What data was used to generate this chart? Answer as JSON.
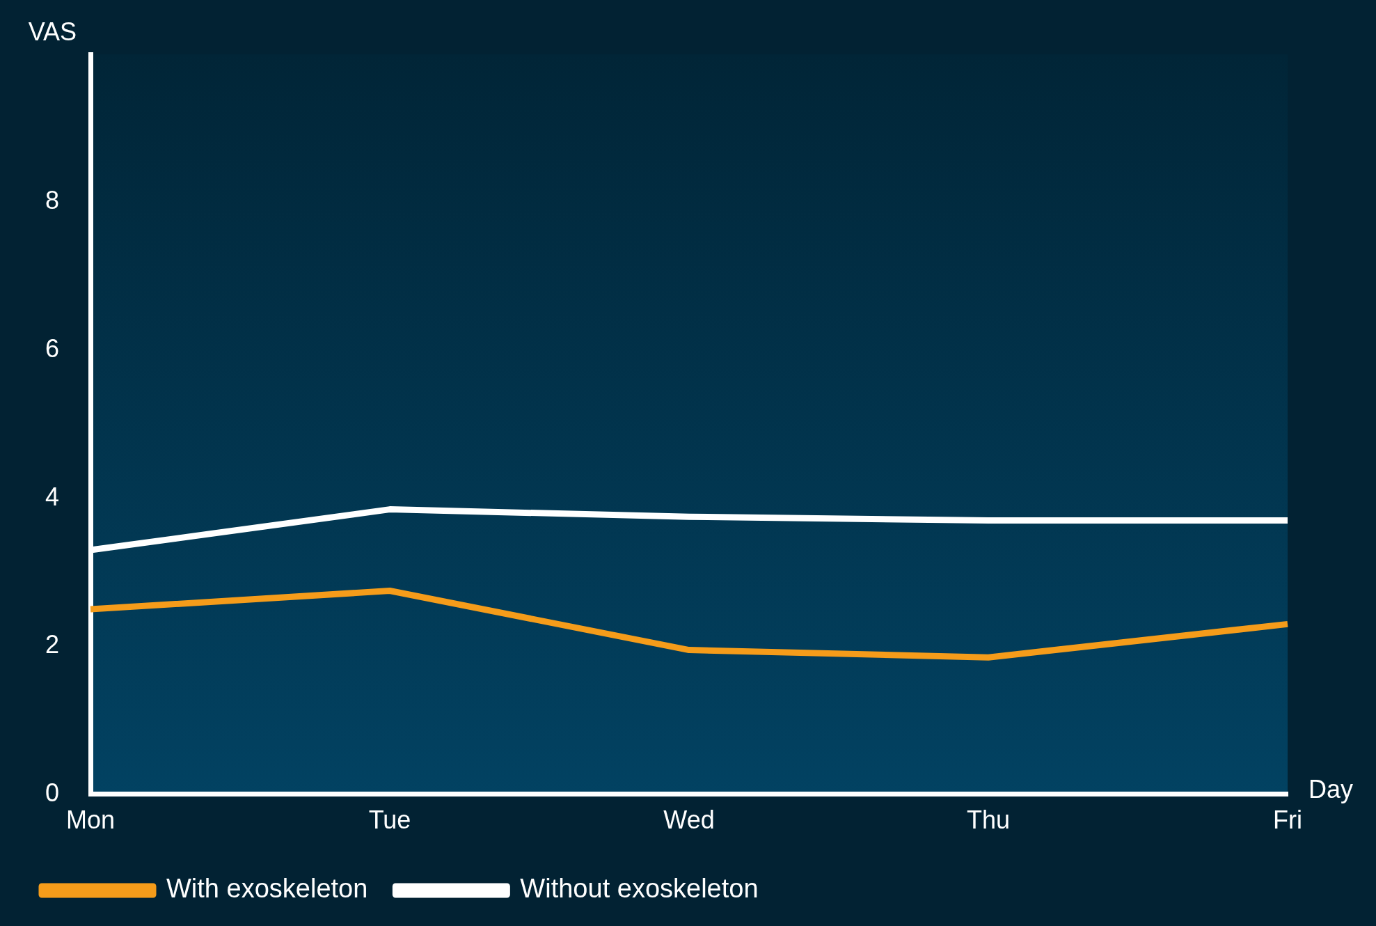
{
  "chart_data": {
    "type": "line",
    "xlabel": "Day",
    "ylabel": "VAS",
    "categories": [
      "Mon",
      "Tue",
      "Wed",
      "Thu",
      "Fri"
    ],
    "series": [
      {
        "name": "With exoskeleton",
        "color": "#f59c1a",
        "values": [
          2.5,
          2.75,
          1.95,
          1.85,
          2.3
        ]
      },
      {
        "name": "Without exoskeleton",
        "color": "#ffffff",
        "values": [
          3.3,
          3.85,
          3.75,
          3.7,
          3.7
        ]
      }
    ],
    "ylim": [
      0,
      10
    ],
    "yticks": [
      0,
      2,
      4,
      6,
      8
    ],
    "grid": false,
    "legend": "bottom left",
    "marker": "none",
    "line_style": "solid"
  }
}
